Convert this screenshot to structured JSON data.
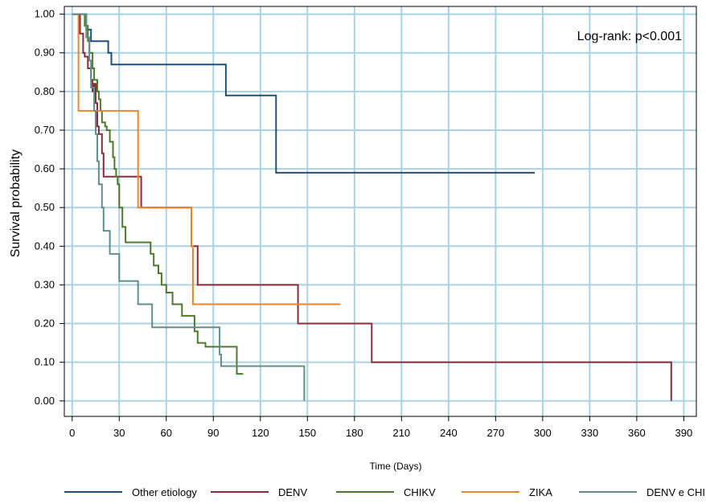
{
  "chart_data": {
    "type": "line",
    "step": true,
    "title": "",
    "xlabel": "Time (Days)",
    "ylabel": "Survival probability",
    "xlim": [
      -5,
      398
    ],
    "ylim": [
      -0.04,
      1.02
    ],
    "x_ticks": [
      0,
      30,
      60,
      90,
      120,
      150,
      180,
      210,
      240,
      270,
      300,
      330,
      360,
      390
    ],
    "y_ticks": [
      0.0,
      0.1,
      0.2,
      0.3,
      0.4,
      0.5,
      0.6,
      0.7,
      0.8,
      0.9,
      1.0
    ],
    "y_tick_labels": [
      "0.00",
      "0.10",
      "0.20",
      "0.30",
      "0.40",
      "0.50",
      "0.60",
      "0.70",
      "0.80",
      "0.90",
      "1.00"
    ],
    "grid": true,
    "legend_position": "bottom",
    "annotation": "Log-rank: p<0.001",
    "series": [
      {
        "name": "Other etiology",
        "color": "#1f4e79",
        "x": [
          0,
          9,
          12,
          17,
          23,
          25,
          98,
          130,
          295
        ],
        "y": [
          1.0,
          0.96,
          0.93,
          0.93,
          0.9,
          0.87,
          0.79,
          0.59,
          0.59
        ]
      },
      {
        "name": "DENV",
        "color": "#8b2a3b",
        "x": [
          0,
          5,
          7,
          8,
          10,
          12,
          13,
          14,
          15,
          16,
          17,
          19,
          20,
          43,
          44,
          76,
          80,
          144,
          191,
          382,
          382
        ],
        "y": [
          1.0,
          0.95,
          0.9,
          0.89,
          0.86,
          0.83,
          0.8,
          0.82,
          0.77,
          0.71,
          0.69,
          0.64,
          0.58,
          0.58,
          0.5,
          0.4,
          0.3,
          0.2,
          0.1,
          0.1,
          0.0
        ],
        "end": 382
      },
      {
        "name": "CHIKV",
        "color": "#4b7a2a",
        "x": [
          0,
          8,
          10,
          11,
          13,
          14,
          16,
          17,
          18,
          19,
          21,
          22,
          24,
          26,
          27,
          28,
          29,
          30,
          32,
          34,
          50,
          52,
          55,
          57,
          60,
          64,
          70,
          78,
          80,
          85,
          105,
          105,
          109
        ],
        "y": [
          1.0,
          0.97,
          0.93,
          0.9,
          0.86,
          0.83,
          0.8,
          0.78,
          0.75,
          0.72,
          0.71,
          0.7,
          0.67,
          0.63,
          0.6,
          0.58,
          0.56,
          0.5,
          0.45,
          0.41,
          0.38,
          0.35,
          0.33,
          0.3,
          0.28,
          0.25,
          0.22,
          0.18,
          0.15,
          0.14,
          0.1,
          0.07,
          0.07
        ]
      },
      {
        "name": "ZIKA",
        "color": "#ee8524",
        "x": [
          0,
          4,
          40,
          42,
          76,
          77,
          171
        ],
        "y": [
          1.0,
          0.75,
          0.75,
          0.5,
          0.4,
          0.25,
          0.25
        ]
      },
      {
        "name": "DENV e CHIKV",
        "color": "#5f8f8a",
        "x": [
          0,
          9,
          11,
          12,
          14,
          15,
          16,
          17,
          19,
          20,
          24,
          30,
          42,
          51,
          94,
          95,
          148,
          148
        ],
        "y": [
          1.0,
          0.94,
          0.88,
          0.81,
          0.75,
          0.69,
          0.62,
          0.56,
          0.5,
          0.44,
          0.38,
          0.31,
          0.25,
          0.19,
          0.12,
          0.09,
          0.09,
          0.0
        ],
        "end": 148
      }
    ]
  }
}
